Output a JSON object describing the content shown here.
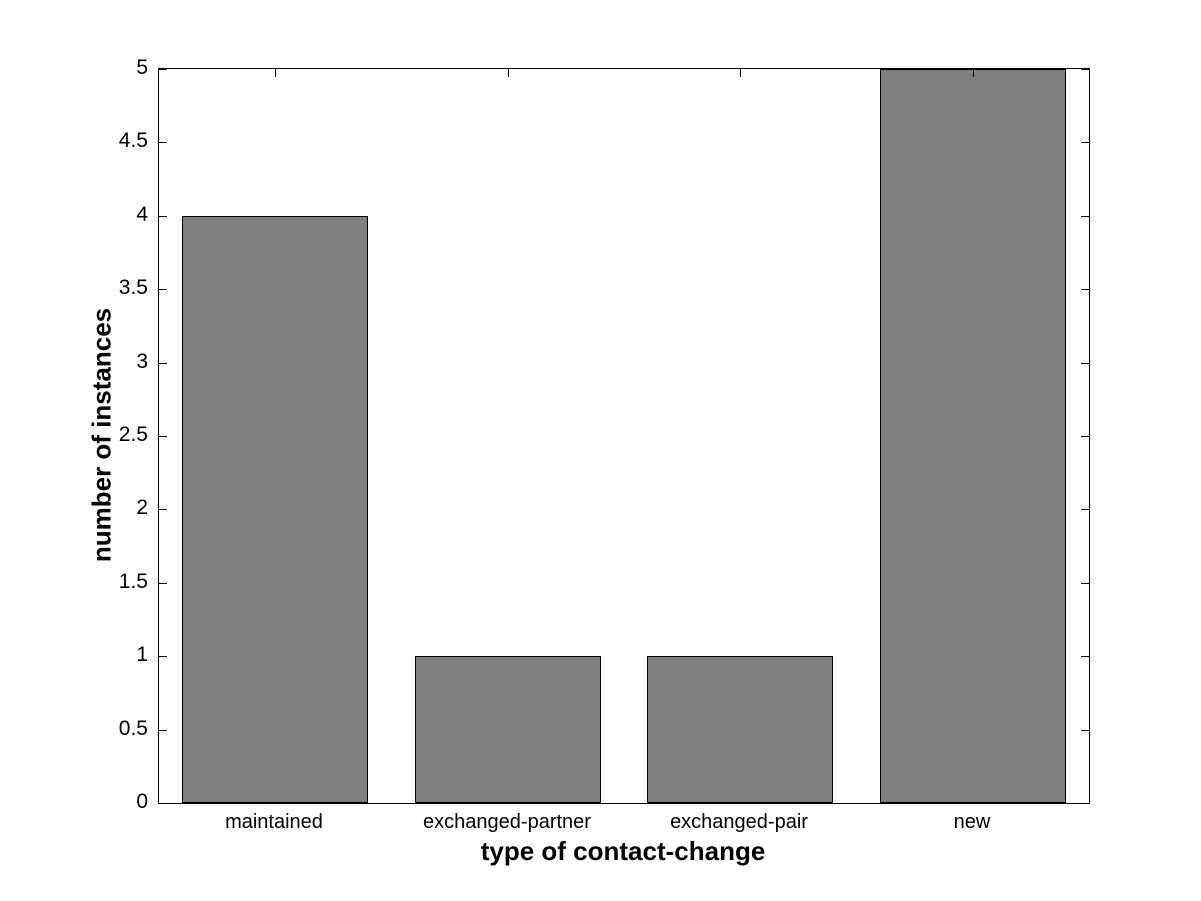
{
  "figure": {
    "background_color": "#ffffff",
    "axis_color": "#000000"
  },
  "chart_data": {
    "type": "bar",
    "title": "",
    "xlabel": "type of contact-change",
    "ylabel": "number of instances",
    "categories": [
      "maintained",
      "exchanged-partner",
      "exchanged-pair",
      "new"
    ],
    "values": [
      4,
      1,
      1,
      5
    ],
    "ylim": [
      0,
      5
    ],
    "yticks": [
      0,
      0.5,
      1,
      1.5,
      2,
      2.5,
      3,
      3.5,
      4,
      4.5,
      5
    ],
    "ytick_labels": [
      "0",
      "0.5",
      "1",
      "1.5",
      "2",
      "2.5",
      "3",
      "3.5",
      "4",
      "4.5",
      "5"
    ],
    "bar_color": "#7f7f7f",
    "bar_edge_color": "#000000",
    "bar_width_fraction": 0.8,
    "grid": false,
    "legend": null,
    "tick_direction": "in"
  }
}
